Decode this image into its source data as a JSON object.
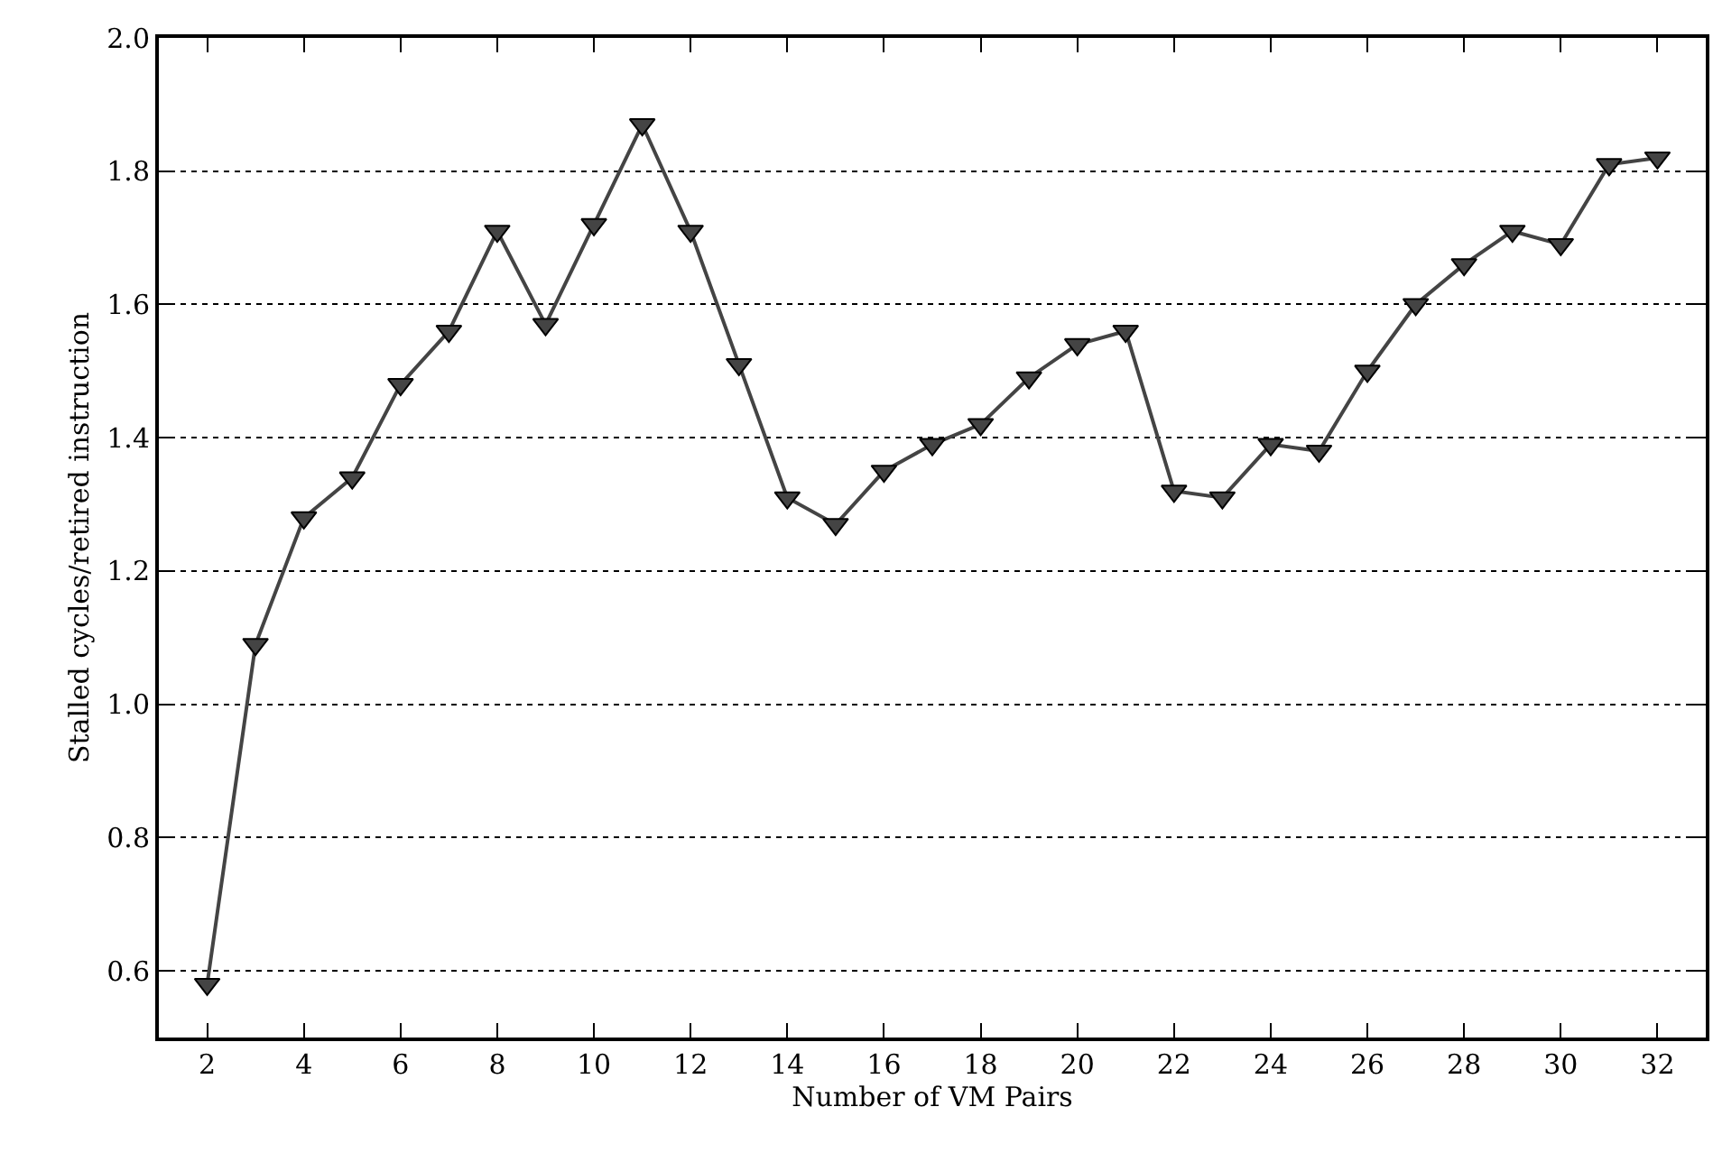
{
  "chart_data": {
    "type": "line",
    "xlabel": "Number of VM Pairs",
    "ylabel": "Stalled cycles/retired instruction",
    "x": [
      2,
      3,
      4,
      5,
      6,
      7,
      8,
      9,
      10,
      11,
      12,
      13,
      14,
      15,
      16,
      17,
      18,
      19,
      20,
      21,
      22,
      23,
      24,
      25,
      26,
      27,
      28,
      29,
      30,
      31,
      32
    ],
    "series": [
      {
        "color": "#444444",
        "values": [
          0.58,
          1.09,
          1.28,
          1.34,
          1.48,
          1.56,
          1.71,
          1.57,
          1.72,
          1.87,
          1.71,
          1.51,
          1.31,
          1.27,
          1.35,
          1.39,
          1.42,
          1.49,
          1.54,
          1.56,
          1.32,
          1.31,
          1.39,
          1.38,
          1.5,
          1.6,
          1.66,
          1.71,
          1.69,
          1.81,
          1.82
        ]
      }
    ],
    "xlim": [
      1,
      33
    ],
    "xticks": [
      2,
      4,
      6,
      8,
      10,
      12,
      14,
      16,
      18,
      20,
      22,
      24,
      26,
      28,
      30,
      32
    ],
    "ylim": [
      0.5,
      2.0
    ],
    "yticks": [
      {
        "value": 0.6,
        "label": "0.6"
      },
      {
        "value": 0.8,
        "label": "0.8"
      },
      {
        "value": 1.0,
        "label": "1.0"
      },
      {
        "value": 1.2,
        "label": "1.2"
      },
      {
        "value": 1.4,
        "label": "1.4"
      },
      {
        "value": 1.6,
        "label": "1.6"
      },
      {
        "value": 1.8,
        "label": "1.8"
      },
      {
        "value": 2.0,
        "label": "2.0"
      }
    ],
    "grid": "y",
    "marker": "triangle",
    "line_style": "solid"
  }
}
